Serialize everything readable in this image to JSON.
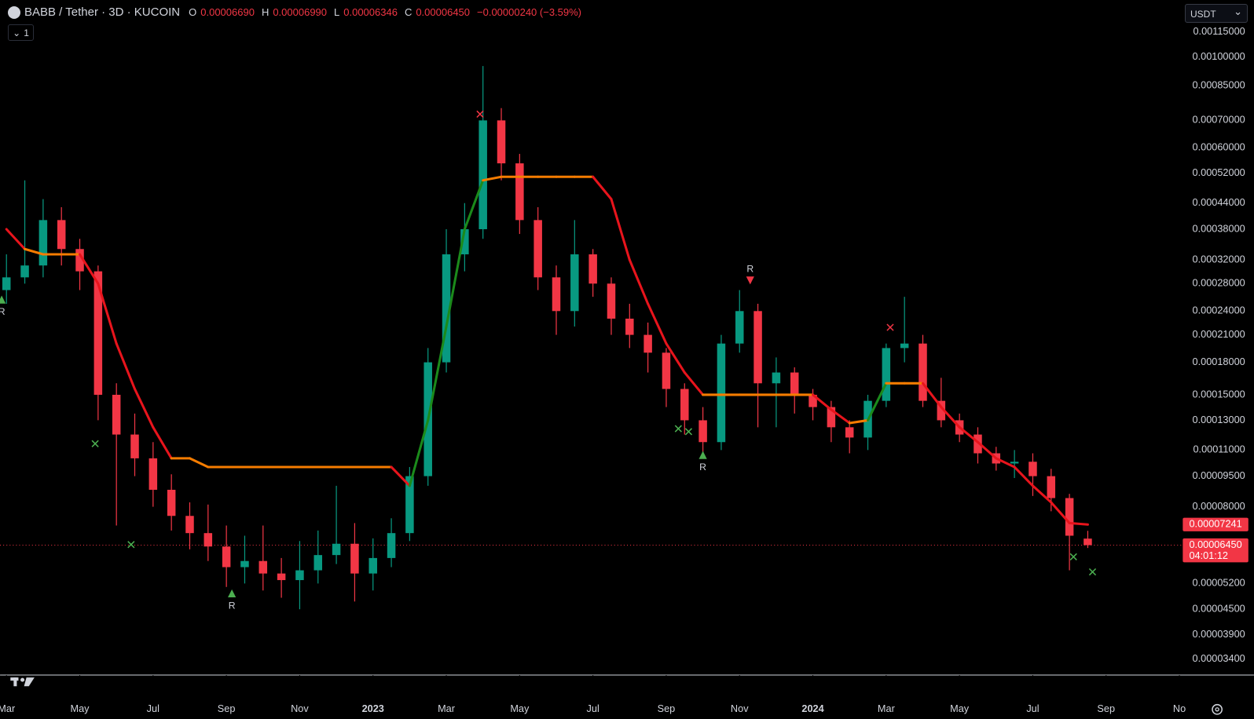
{
  "chart_data": {
    "type": "candlestick",
    "symbol": "BABB / Tether · 3D · KUCOIN",
    "ohlc": [
      {
        "key": "O",
        "text": "0.00006690"
      },
      {
        "key": "H",
        "text": "0.00006990"
      },
      {
        "key": "L",
        "text": "0.00006346"
      },
      {
        "key": "C",
        "text": "0.00006450"
      }
    ],
    "change": "−0.00000240 (−3.59%)",
    "currency": "USDT",
    "indicator_count": "1",
    "log_scale": true,
    "grid": false,
    "up_color": "#089981",
    "down_color": "#f23645",
    "xlim": [
      -0.175,
      32.07
    ],
    "ylim": [
      3.11e-05,
      0.001376
    ],
    "xticks": [
      {
        "value": 0,
        "label": "Mar"
      },
      {
        "value": 2,
        "label": "May"
      },
      {
        "value": 4,
        "label": "Jul"
      },
      {
        "value": 6,
        "label": "Sep"
      },
      {
        "value": 8,
        "label": "Nov"
      },
      {
        "value": 10,
        "label": "2023"
      },
      {
        "value": 12,
        "label": "Mar"
      },
      {
        "value": 14,
        "label": "May"
      },
      {
        "value": 16,
        "label": "Jul"
      },
      {
        "value": 18,
        "label": "Sep"
      },
      {
        "value": 20,
        "label": "Nov"
      },
      {
        "value": 22,
        "label": "2024"
      },
      {
        "value": 24,
        "label": "Mar"
      },
      {
        "value": 26,
        "label": "May"
      },
      {
        "value": 28,
        "label": "Jul"
      },
      {
        "value": 30,
        "label": "Sep"
      },
      {
        "value": 32,
        "label": "No"
      }
    ],
    "yticks": [
      {
        "value": 0.00115,
        "label": "0.00115000"
      },
      {
        "value": 0.001,
        "label": "0.00100000"
      },
      {
        "value": 0.00085,
        "label": "0.00085000"
      },
      {
        "value": 0.0007,
        "label": "0.00070000"
      },
      {
        "value": 0.0006,
        "label": "0.00060000"
      },
      {
        "value": 0.00052,
        "label": "0.00052000"
      },
      {
        "value": 0.00044,
        "label": "0.00044000"
      },
      {
        "value": 0.00038,
        "label": "0.00038000"
      },
      {
        "value": 0.00032,
        "label": "0.00032000"
      },
      {
        "value": 0.00028,
        "label": "0.00028000"
      },
      {
        "value": 0.00024,
        "label": "0.00024000"
      },
      {
        "value": 0.00021,
        "label": "0.00021000"
      },
      {
        "value": 0.00018,
        "label": "0.00018000"
      },
      {
        "value": 0.00015,
        "label": "0.00015000"
      },
      {
        "value": 0.00013,
        "label": "0.00013000"
      },
      {
        "value": 0.00011,
        "label": "0.00011000"
      },
      {
        "value": 9.5e-05,
        "label": "0.00009500"
      },
      {
        "value": 8e-05,
        "label": "0.00008000"
      },
      {
        "value": 5.2e-05,
        "label": "0.00005200"
      },
      {
        "value": 4.5e-05,
        "label": "0.00004500"
      },
      {
        "value": 3.9e-05,
        "label": "0.00003900"
      },
      {
        "value": 3.4e-05,
        "label": "0.00003400"
      }
    ],
    "candles": {
      "x": [
        0,
        0.5,
        1,
        1.5,
        2,
        2.5,
        3,
        3.5,
        4,
        4.5,
        5,
        5.5,
        6,
        6.5,
        7,
        7.5,
        8,
        8.5,
        9,
        9.5,
        10,
        10.5,
        11,
        11.5,
        12,
        12.5,
        13,
        13.5,
        14,
        14.5,
        15,
        15.5,
        16,
        16.5,
        17,
        17.5,
        18,
        18.5,
        19,
        19.5,
        20,
        20.5,
        21,
        21.5,
        22,
        22.5,
        23,
        23.5,
        24,
        24.5,
        25,
        25.5,
        26,
        26.5,
        27,
        27.5,
        28,
        28.5,
        29,
        29.5
      ],
      "open": [
        0.00027,
        0.00029,
        0.00031,
        0.0004,
        0.00034,
        0.0003,
        0.00015,
        0.00012,
        0.000105,
        8.8e-05,
        7.6e-05,
        6.9e-05,
        6.4e-05,
        5.7e-05,
        5.9e-05,
        5.5e-05,
        5.3e-05,
        5.6e-05,
        6.1e-05,
        6.5e-05,
        5.5e-05,
        6e-05,
        6.9e-05,
        9.5e-05,
        0.00018,
        0.00033,
        0.00038,
        0.0007,
        0.00055,
        0.0004,
        0.00029,
        0.00024,
        0.00033,
        0.00028,
        0.00023,
        0.00021,
        0.00019,
        0.000155,
        0.00013,
        0.000115,
        0.0002,
        0.00024,
        0.00016,
        0.00017,
        0.00015,
        0.00014,
        0.000125,
        0.000118,
        0.000145,
        0.000195,
        0.0002,
        0.000145,
        0.00013,
        0.00012,
        0.000108,
        0.000102,
        0.000103,
        9.5e-05,
        8.4e-05,
        6.69e-05
      ],
      "high": [
        0.00033,
        0.0005,
        0.00045,
        0.00043,
        0.00036,
        0.00031,
        0.00016,
        0.000135,
        0.000115,
        9.6e-05,
        8.2e-05,
        8.1e-05,
        7.2e-05,
        6.8e-05,
        7.2e-05,
        6e-05,
        6.6e-05,
        7e-05,
        9e-05,
        7.3e-05,
        6.7e-05,
        7.5e-05,
        0.0001,
        0.000195,
        0.00038,
        0.00044,
        0.00095,
        0.00075,
        0.00058,
        0.00043,
        0.00031,
        0.0004,
        0.00034,
        0.00029,
        0.00025,
        0.000225,
        0.000195,
        0.00016,
        0.00014,
        0.00021,
        0.00027,
        0.00025,
        0.000185,
        0.000175,
        0.000155,
        0.000145,
        0.00013,
        0.00015,
        0.0002,
        0.00026,
        0.00021,
        0.000165,
        0.000135,
        0.000125,
        0.000112,
        0.00011,
        0.000108,
        9.9e-05,
        8.6e-05,
        6.99e-05
      ],
      "low": [
        0.00025,
        0.00028,
        0.00029,
        0.00031,
        0.00027,
        0.00013,
        7.2e-05,
        9.5e-05,
        8e-05,
        7e-05,
        6.3e-05,
        5.9e-05,
        5.1e-05,
        5.2e-05,
        5e-05,
        4.8e-05,
        4.5e-05,
        5.2e-05,
        5.8e-05,
        4.7e-05,
        5e-05,
        5.7e-05,
        6.6e-05,
        9e-05,
        0.00017,
        0.0003,
        0.00036,
        0.0005,
        0.00037,
        0.00027,
        0.00021,
        0.00022,
        0.00026,
        0.00021,
        0.000195,
        0.00017,
        0.00014,
        0.00012,
        0.000106,
        0.00011,
        0.00019,
        0.000125,
        0.000125,
        0.000135,
        0.00013,
        0.000115,
        0.000108,
        0.00011,
        0.00014,
        0.00018,
        0.00014,
        0.000125,
        0.000115,
        0.000102,
        9.8e-05,
        9.4e-05,
        8.5e-05,
        7.8e-05,
        5.6e-05,
        6.346e-05
      ],
      "close": [
        0.00029,
        0.00031,
        0.0004,
        0.00034,
        0.0003,
        0.00015,
        0.00012,
        0.000105,
        8.8e-05,
        7.6e-05,
        6.9e-05,
        6.4e-05,
        5.7e-05,
        5.9e-05,
        5.5e-05,
        5.3e-05,
        5.6e-05,
        6.1e-05,
        6.5e-05,
        5.5e-05,
        6e-05,
        6.9e-05,
        9.5e-05,
        0.00018,
        0.00033,
        0.00038,
        0.0007,
        0.00055,
        0.0004,
        0.00029,
        0.00024,
        0.00033,
        0.00028,
        0.00023,
        0.00021,
        0.00019,
        0.000155,
        0.00013,
        0.000115,
        0.0002,
        0.00024,
        0.00016,
        0.00017,
        0.00015,
        0.00014,
        0.000125,
        0.000118,
        0.000145,
        0.000195,
        0.0002,
        0.000145,
        0.00013,
        0.00012,
        0.000108,
        0.000102,
        0.000103,
        9.5e-05,
        8.4e-05,
        6.8e-05,
        6.45e-05
      ]
    },
    "indicator": {
      "values": [
        0.00038,
        0.00034,
        0.00033,
        0.00033,
        0.00033,
        0.00028,
        0.0002,
        0.000155,
        0.000125,
        0.000105,
        0.000105,
        0.0001,
        0.0001,
        0.0001,
        0.0001,
        0.0001,
        0.0001,
        0.0001,
        0.0001,
        0.0001,
        0.0001,
        0.0001,
        9e-05,
        0.00013,
        0.00022,
        0.00038,
        0.0005,
        0.00051,
        0.00051,
        0.00051,
        0.00051,
        0.00051,
        0.00051,
        0.00045,
        0.00032,
        0.00025,
        0.0002,
        0.00017,
        0.00015,
        0.00015,
        0.00015,
        0.00015,
        0.00015,
        0.00015,
        0.00015,
        0.000138,
        0.000128,
        0.00013,
        0.00016,
        0.00016,
        0.00016,
        0.00014,
        0.000125,
        0.000115,
        0.000105,
        0.0001,
        9e-05,
        8.2e-05,
        7.3e-05,
        7.241e-05
      ],
      "segment_colors": [
        "#e8141c",
        "#e8141c",
        "#f57c00",
        "#f57c00",
        "#f57c00",
        "#e8141c",
        "#e8141c",
        "#e8141c",
        "#e8141c",
        "#e8141c",
        "#f57c00",
        "#f57c00",
        "#f57c00",
        "#f57c00",
        "#f57c00",
        "#f57c00",
        "#f57c00",
        "#f57c00",
        "#f57c00",
        "#f57c00",
        "#f57c00",
        "#f57c00",
        "#e8141c",
        "#1b8a1b",
        "#1b8a1b",
        "#1b8a1b",
        "#1b8a1b",
        "#f57c00",
        "#f57c00",
        "#f57c00",
        "#f57c00",
        "#f57c00",
        "#f57c00",
        "#e8141c",
        "#e8141c",
        "#e8141c",
        "#e8141c",
        "#e8141c",
        "#e8141c",
        "#f57c00",
        "#f57c00",
        "#f57c00",
        "#f57c00",
        "#f57c00",
        "#f57c00",
        "#e8141c",
        "#e8141c",
        "#f57c00",
        "#1b8a1b",
        "#f57c00",
        "#f57c00",
        "#e8141c",
        "#e8141c",
        "#e8141c",
        "#e8141c",
        "#e8141c",
        "#e8141c",
        "#e8141c",
        "#e8141c",
        "#e8141c"
      ]
    },
    "indicator_last": {
      "value": 7.241e-05,
      "label": "0.00007241"
    },
    "last_price": {
      "value": 6.45e-05,
      "label": "0.00006450"
    },
    "countdown": "04:01:12",
    "signals": [
      {
        "text": "R",
        "x": -0.13,
        "price": 0.000256,
        "color": "#4caf50",
        "direction": "up"
      },
      {
        "text": "R",
        "x": 6.15,
        "price": 4.92e-05,
        "color": "#4caf50",
        "direction": "up"
      },
      {
        "text": "R",
        "x": 19.0,
        "price": 0.000107,
        "color": "#4caf50",
        "direction": "up"
      },
      {
        "text": "R",
        "x": 20.29,
        "price": 0.000285,
        "color": "#f23645",
        "direction": "down"
      }
    ],
    "crosses": [
      {
        "x": 2.42,
        "price": 0.000114,
        "color": "#4caf50"
      },
      {
        "x": 3.4,
        "price": 6.47e-05,
        "color": "#4caf50"
      },
      {
        "x": 18.33,
        "price": 0.000124,
        "color": "#4caf50"
      },
      {
        "x": 18.61,
        "price": 0.000122,
        "color": "#4caf50"
      },
      {
        "x": 29.11,
        "price": 6.04e-05,
        "color": "#4caf50"
      },
      {
        "x": 29.63,
        "price": 5.55e-05,
        "color": "#4caf50"
      },
      {
        "x": 12.92,
        "price": 0.000725,
        "color": "#f23645"
      },
      {
        "x": 24.11,
        "price": 0.000219,
        "color": "#f23645"
      }
    ]
  }
}
